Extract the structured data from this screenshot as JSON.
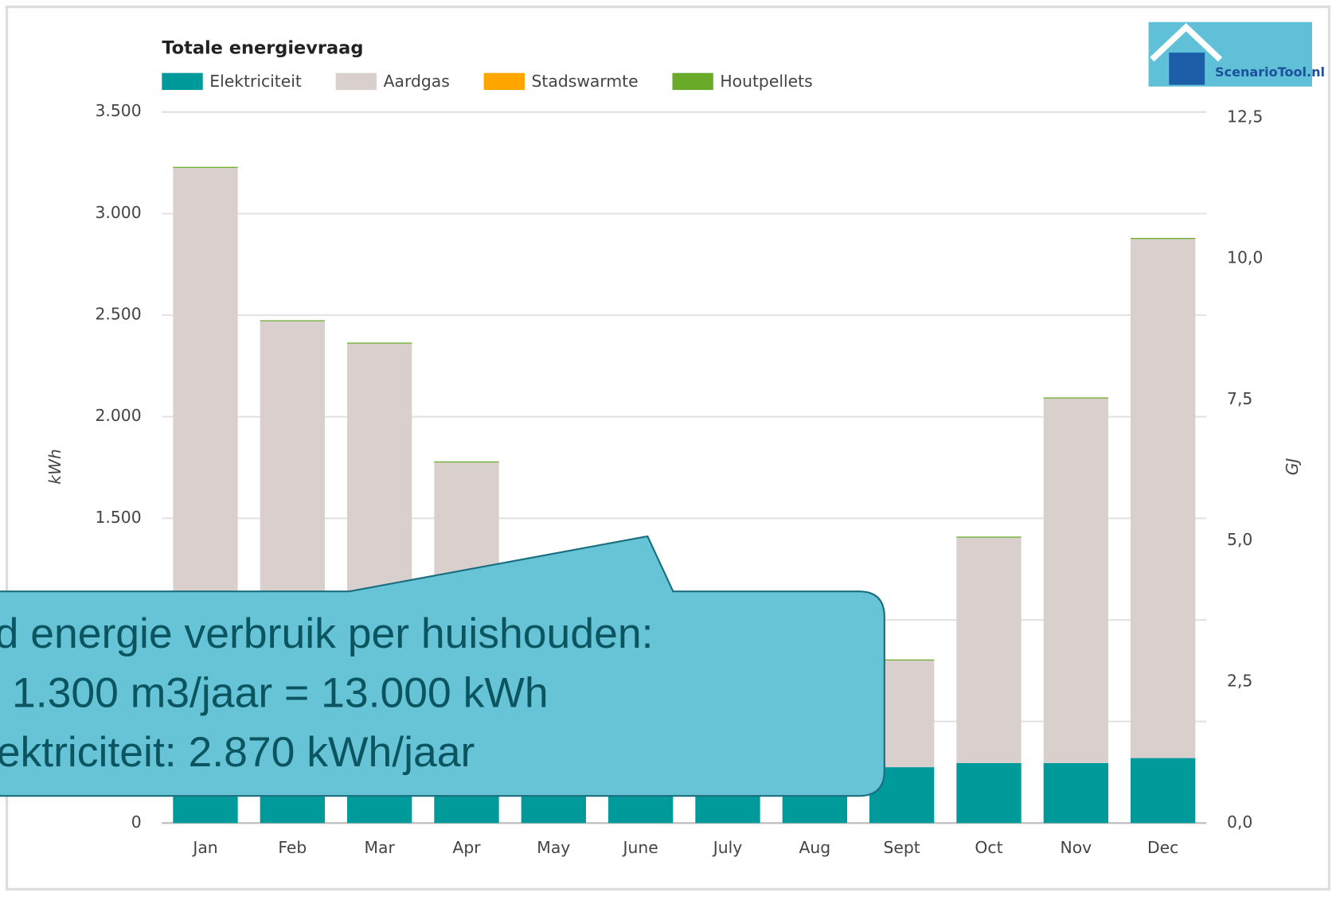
{
  "chart_data": {
    "type": "bar",
    "stacked": true,
    "title": "Totale energievraag",
    "ylabel": "kWh",
    "y2label": "GJ",
    "categories": [
      "Jan",
      "Feb",
      "Mar",
      "Apr",
      "May",
      "June",
      "July",
      "Aug",
      "Sept",
      "Oct",
      "Nov",
      "Dec"
    ],
    "series": [
      {
        "name": "Elektriciteit",
        "color": "#009a9a",
        "values": [
          330,
          300,
          300,
          280,
          270,
          250,
          250,
          260,
          275,
          295,
          295,
          320
        ]
      },
      {
        "name": "Aardgas",
        "color": "#d9d0ce",
        "values": [
          2895,
          2170,
          2060,
          1495,
          825,
          395,
          245,
          295,
          525,
          1110,
          1795,
          2555
        ]
      },
      {
        "name": "Stadswarmte",
        "color": "#ffa500",
        "values": [
          0,
          0,
          0,
          0,
          0,
          0,
          0,
          0,
          0,
          0,
          0,
          0
        ]
      },
      {
        "name": "Houtpellets",
        "color": "#6aaa2a",
        "values": [
          5,
          5,
          5,
          5,
          5,
          5,
          5,
          5,
          5,
          5,
          5,
          5
        ]
      }
    ],
    "ylim": [
      0,
      3500
    ],
    "yticks": [
      0,
      {
        "value": 500,
        "label": "500"
      },
      {
        "value": 1000,
        "label": "1.000"
      },
      {
        "value": 1500,
        "label": "1.500"
      },
      {
        "value": 2000,
        "label": "2.000"
      },
      {
        "value": 2500,
        "label": "2.500"
      },
      {
        "value": 3000,
        "label": "3.000"
      },
      {
        "value": 3500,
        "label": "3.500"
      }
    ],
    "y2lim": [
      0,
      12.6
    ],
    "y2ticks": [
      {
        "value": 0,
        "label": "0,0"
      },
      {
        "value": 2.5,
        "label": "2,5"
      },
      {
        "value": 5,
        "label": "5,0"
      },
      {
        "value": 7.5,
        "label": "7,5"
      },
      {
        "value": 10,
        "label": "10,0"
      },
      {
        "value": 12.5,
        "label": "12,5"
      }
    ],
    "grid": true,
    "legend": "top"
  },
  "logo": {
    "text": "ScenarioTool.nl"
  },
  "callout": {
    "lines": [
      "d energie verbruik per huishouden:",
      "1.300 m3/jaar = 13.000 kWh",
      "ektriciteit: 2.870 kWh/jaar"
    ]
  }
}
